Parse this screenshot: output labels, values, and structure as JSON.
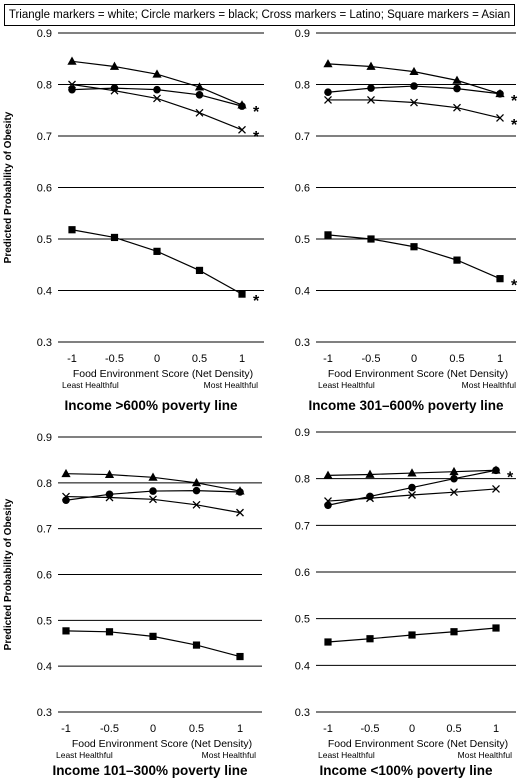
{
  "legend": "Triangle markers = white; Circle markers = black; Cross markers = Latino; Square markers = Asian",
  "ylabel": "Predicted Probability of Obesity",
  "xlabel": "Food Environment Score (Net Density)",
  "least_label": "Least Healthful",
  "most_label": "Most Healthful",
  "star": "*",
  "chart_data": [
    {
      "type": "line",
      "title": "Income >600% poverty line",
      "x": [
        -1,
        -0.5,
        0,
        0.5,
        1
      ],
      "xtick_labels": [
        "-1",
        "-0.5",
        "0",
        "0.5",
        "1"
      ],
      "ylim": [
        0.3,
        0.9
      ],
      "yticks": [
        "0.9",
        "0.8",
        "0.7",
        "0.6",
        "0.5",
        "0.4",
        "0.3"
      ],
      "grid": true,
      "series": [
        {
          "marker": "triangle",
          "values": [
            0.845,
            0.835,
            0.82,
            0.795,
            0.76
          ],
          "star": true
        },
        {
          "marker": "circle",
          "values": [
            0.79,
            0.793,
            0.79,
            0.78,
            0.758
          ],
          "star": false
        },
        {
          "marker": "cross",
          "values": [
            0.8,
            0.788,
            0.773,
            0.745,
            0.712
          ],
          "star": true
        },
        {
          "marker": "square",
          "values": [
            0.518,
            0.503,
            0.476,
            0.439,
            0.393
          ],
          "star": true
        }
      ]
    },
    {
      "type": "line",
      "title": "Income 301–600% poverty line",
      "x": [
        -1,
        -0.5,
        0,
        0.5,
        1
      ],
      "xtick_labels": [
        "-1",
        "-0.5",
        "0",
        "0.5",
        "1"
      ],
      "ylim": [
        0.3,
        0.9
      ],
      "yticks": [
        "0.9",
        "0.8",
        "0.7",
        "0.6",
        "0.5",
        "0.4",
        "0.3"
      ],
      "grid": true,
      "series": [
        {
          "marker": "triangle",
          "values": [
            0.84,
            0.835,
            0.825,
            0.808,
            0.782
          ],
          "star": true
        },
        {
          "marker": "circle",
          "values": [
            0.785,
            0.793,
            0.797,
            0.792,
            0.782
          ],
          "star": false
        },
        {
          "marker": "cross",
          "values": [
            0.77,
            0.77,
            0.765,
            0.755,
            0.735
          ],
          "star": true
        },
        {
          "marker": "square",
          "values": [
            0.508,
            0.5,
            0.485,
            0.459,
            0.423
          ],
          "star": true
        }
      ]
    },
    {
      "type": "line",
      "title": "Income 101–300% poverty line",
      "x": [
        -1,
        -0.5,
        0,
        0.5,
        1
      ],
      "xtick_labels": [
        "-1",
        "-0.5",
        "0",
        "0.5",
        "1"
      ],
      "ylim": [
        0.3,
        0.9
      ],
      "yticks": [
        "0.9",
        "0.8",
        "0.7",
        "0.6",
        "0.5",
        "0.4",
        "0.3"
      ],
      "grid": true,
      "series": [
        {
          "marker": "triangle",
          "values": [
            0.82,
            0.818,
            0.812,
            0.8,
            0.782
          ],
          "star": false
        },
        {
          "marker": "circle",
          "values": [
            0.762,
            0.775,
            0.782,
            0.783,
            0.78
          ],
          "star": false
        },
        {
          "marker": "cross",
          "values": [
            0.77,
            0.768,
            0.764,
            0.752,
            0.735
          ],
          "star": false
        },
        {
          "marker": "square",
          "values": [
            0.477,
            0.475,
            0.465,
            0.446,
            0.421
          ],
          "star": false
        }
      ]
    },
    {
      "type": "line",
      "title": "Income <100% poverty line",
      "x": [
        -1,
        -0.5,
        0,
        0.5,
        1
      ],
      "xtick_labels": [
        "-1",
        "-0.5",
        "0",
        "0.5",
        "1"
      ],
      "ylim": [
        0.3,
        0.9
      ],
      "yticks": [
        "0.9",
        "0.8",
        "0.7",
        "0.6",
        "0.5",
        "0.4",
        "0.3"
      ],
      "grid": true,
      "series": [
        {
          "marker": "triangle",
          "values": [
            0.807,
            0.809,
            0.812,
            0.815,
            0.818
          ],
          "star": true
        },
        {
          "marker": "circle",
          "values": [
            0.743,
            0.762,
            0.781,
            0.8,
            0.818
          ],
          "star": false
        },
        {
          "marker": "cross",
          "values": [
            0.752,
            0.758,
            0.765,
            0.771,
            0.778
          ],
          "star": false
        },
        {
          "marker": "square",
          "values": [
            0.45,
            0.457,
            0.465,
            0.472,
            0.48
          ],
          "star": false
        }
      ]
    }
  ]
}
